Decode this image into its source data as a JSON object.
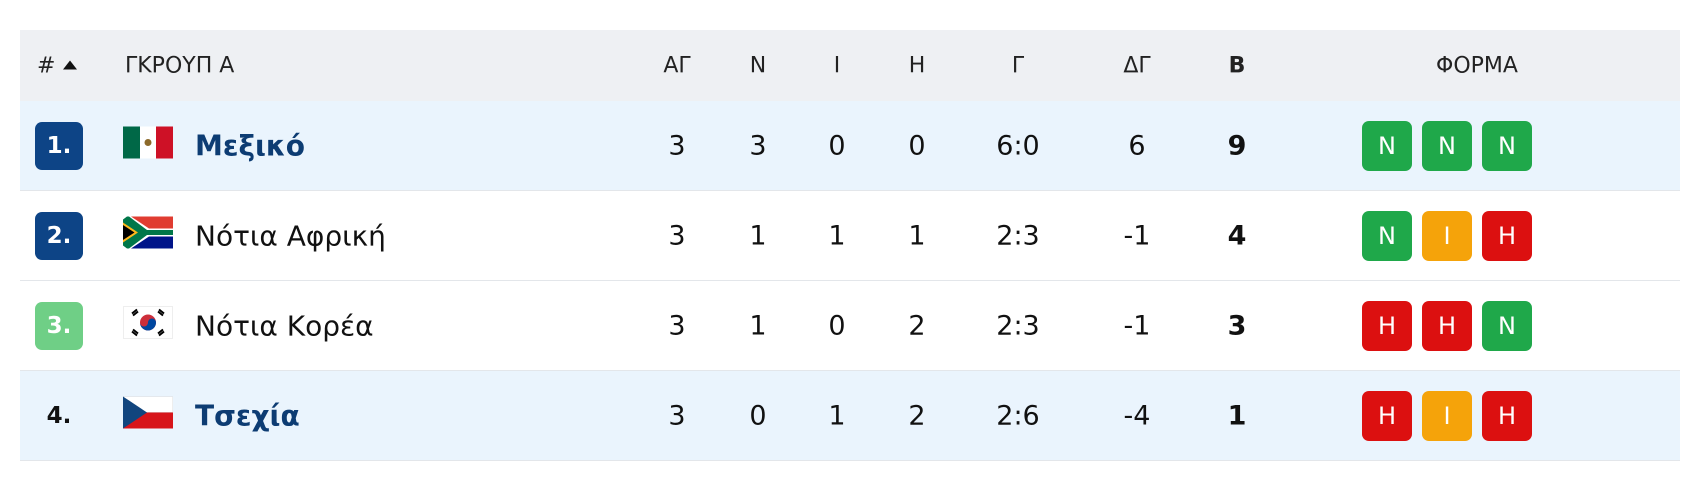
{
  "header": {
    "rank": "#",
    "group": "ΓΚΡΟΥΠ Α",
    "played": "ΑΓ",
    "won": "Ν",
    "draw": "Ι",
    "lost": "Η",
    "goals": "Γ",
    "goal_diff": "ΔΓ",
    "points": "Β",
    "form": "ΦΟΡΜΑ",
    "background": "#eef0f3"
  },
  "table": {
    "rows": [
      {
        "rank": "1.",
        "rank_color": "#0d4486",
        "team": "Μεξικό",
        "highlight": true,
        "played": 3,
        "won": 3,
        "draw": 0,
        "lost": 0,
        "goals": "6:0",
        "goal_diff": 6,
        "points": 9,
        "form": [
          {
            "result": "N",
            "color": "#1fa84a"
          },
          {
            "result": "N",
            "color": "#1fa84a"
          },
          {
            "result": "N",
            "color": "#1fa84a"
          }
        ]
      },
      {
        "rank": "2.",
        "rank_color": "#0d4486",
        "team": "Νότια Αφρική",
        "highlight": false,
        "played": 3,
        "won": 1,
        "draw": 1,
        "lost": 1,
        "goals": "2:3",
        "goal_diff": -1,
        "points": 4,
        "form": [
          {
            "result": "N",
            "color": "#1fa84a"
          },
          {
            "result": "I",
            "color": "#f5a30a"
          },
          {
            "result": "H",
            "color": "#dc1010"
          }
        ]
      },
      {
        "rank": "3.",
        "rank_color": "#6fcf86",
        "team": "Νότια Κορέα",
        "highlight": false,
        "played": 3,
        "won": 1,
        "draw": 0,
        "lost": 2,
        "goals": "2:3",
        "goal_diff": -1,
        "points": 3,
        "form": [
          {
            "result": "H",
            "color": "#dc1010"
          },
          {
            "result": "H",
            "color": "#dc1010"
          },
          {
            "result": "N",
            "color": "#1fa84a"
          }
        ]
      },
      {
        "rank": "4.",
        "rank_color": null,
        "team": "Τσεχία",
        "highlight": true,
        "played": 3,
        "won": 0,
        "draw": 1,
        "lost": 2,
        "goals": "2:6",
        "goal_diff": -4,
        "points": 1,
        "form": [
          {
            "result": "H",
            "color": "#dc1010"
          },
          {
            "result": "I",
            "color": "#f5a30a"
          },
          {
            "result": "H",
            "color": "#dc1010"
          }
        ]
      }
    ]
  }
}
